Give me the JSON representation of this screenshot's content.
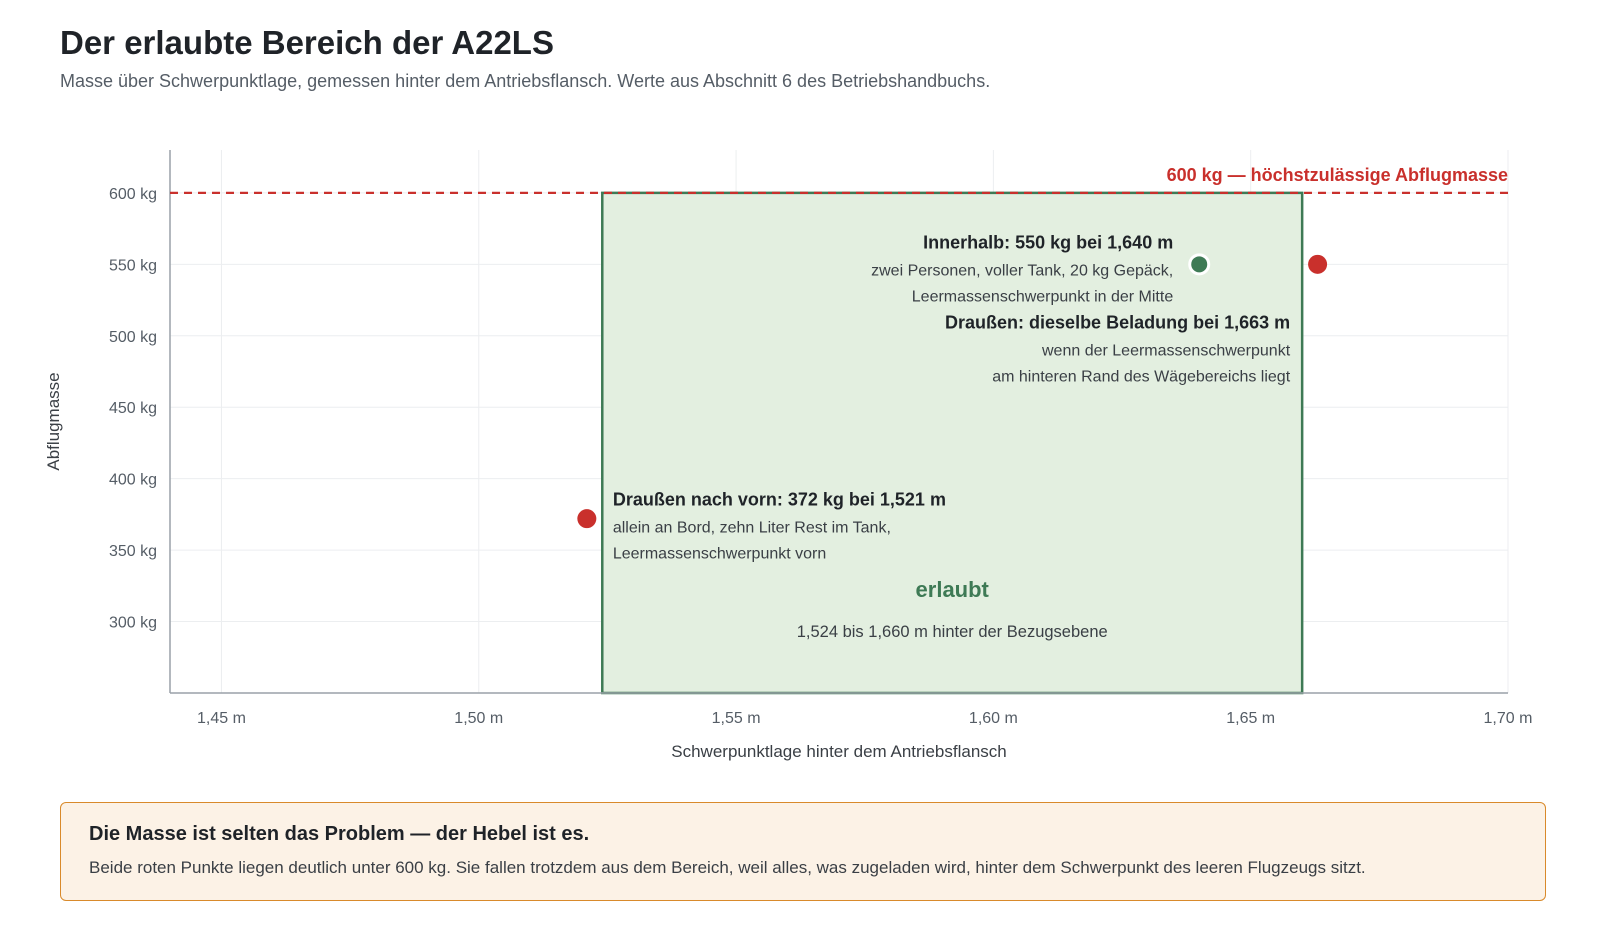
{
  "header": {
    "title": "Der erlaubte Bereich der A22LS",
    "subtitle": "Masse über Schwerpunktlage, gemessen hinter dem Antriebsflansch. Werte aus Abschnitt 6 des Betriebshandbuchs."
  },
  "chart_data": {
    "type": "scatter",
    "xlabel": "Schwerpunktlage hinter dem Antriebsflansch",
    "ylabel": "Abflugmasse",
    "xlim": [
      1.44,
      1.7
    ],
    "ylim": [
      250,
      630
    ],
    "x_ticks": [
      {
        "value": 1.45,
        "label": "1,45 m"
      },
      {
        "value": 1.5,
        "label": "1,50 m"
      },
      {
        "value": 1.55,
        "label": "1,55 m"
      },
      {
        "value": 1.6,
        "label": "1,60 m"
      },
      {
        "value": 1.65,
        "label": "1,65 m"
      },
      {
        "value": 1.7,
        "label": "1,70 m"
      }
    ],
    "y_ticks": [
      {
        "value": 300,
        "label": "300 kg"
      },
      {
        "value": 350,
        "label": "350 kg"
      },
      {
        "value": 400,
        "label": "400 kg"
      },
      {
        "value": 450,
        "label": "450 kg"
      },
      {
        "value": 500,
        "label": "500 kg"
      },
      {
        "value": 550,
        "label": "550 kg"
      },
      {
        "value": 600,
        "label": "600 kg"
      }
    ],
    "grid": true,
    "max_mass": {
      "value": 600,
      "label": "600 kg — höchstzulässige Abflugmasse",
      "color": "#c9302c"
    },
    "envelope": {
      "x_min": 1.524,
      "x_max": 1.66,
      "y_max": 600,
      "label": "erlaubt",
      "sublabel": "1,524 bis 1,660 m hinter der Bezugsebene",
      "fill": "#e3efe0",
      "stroke": "#3e7a55"
    },
    "points": [
      {
        "x": 1.64,
        "y": 550,
        "color": "#3e7a55",
        "status": "inside",
        "label": "Innerhalb: 550 kg bei 1,640 m",
        "lines": [
          "zwei Personen, voller Tank, 20 kg Gepäck,",
          "Leermassenschwerpunkt in der Mitte"
        ]
      },
      {
        "x": 1.663,
        "y": 550,
        "color": "#c9302c",
        "status": "outside",
        "label": "Draußen: dieselbe Beladung bei 1,663 m",
        "lines": [
          "wenn der Leermassenschwerpunkt",
          "am hinteren Rand des Wägebereichs liegt"
        ]
      },
      {
        "x": 1.521,
        "y": 372,
        "color": "#c9302c",
        "status": "outside",
        "label": "Draußen nach vorn: 372 kg bei 1,521 m",
        "lines": [
          "allein an Bord, zehn Liter Rest im Tank,",
          "Leermassenschwerpunkt vorn"
        ]
      }
    ]
  },
  "note": {
    "title": "Die Masse ist selten das Problem — der Hebel ist es.",
    "text": "Beide roten Punkte liegen deutlich unter 600 kg. Sie fallen trotzdem aus dem Bereich, weil alles, was zugeladen wird, hinter dem Schwerpunkt des leeren Flugzeugs sitzt."
  }
}
